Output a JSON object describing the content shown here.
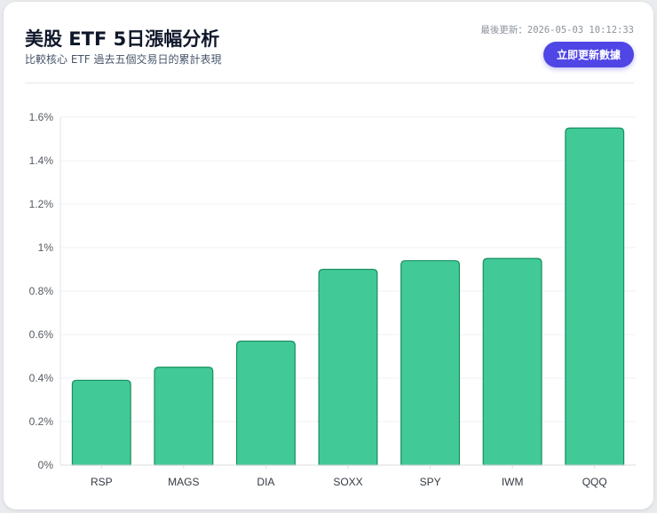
{
  "header": {
    "title": "美股 ETF 5日漲幅分析",
    "subtitle": "比較核心 ETF 過去五個交易日的累計表現",
    "last_updated": "最後更新：2026-05-03 10:12:33",
    "refresh_label": "立即更新數據"
  },
  "colors": {
    "bar_fill": "#41c998",
    "bar_stroke": "#17905f",
    "accent": "#4f46e5"
  },
  "chart_data": {
    "type": "bar",
    "categories": [
      "RSP",
      "MAGS",
      "DIA",
      "SOXX",
      "SPY",
      "IWM",
      "QQQ"
    ],
    "values": [
      0.39,
      0.45,
      0.57,
      0.9,
      0.94,
      0.95,
      1.55
    ],
    "title": "",
    "xlabel": "",
    "ylabel": "",
    "ylim": [
      0,
      1.6
    ],
    "yticks": [
      {
        "value": 0,
        "label": "0%"
      },
      {
        "value": 0.2,
        "label": "0.2%"
      },
      {
        "value": 0.4,
        "label": "0.4%"
      },
      {
        "value": 0.6,
        "label": "0.6%"
      },
      {
        "value": 0.8,
        "label": "0.8%"
      },
      {
        "value": 1.0,
        "label": "1%"
      },
      {
        "value": 1.2,
        "label": "1.2%"
      },
      {
        "value": 1.4,
        "label": "1.4%"
      },
      {
        "value": 1.6,
        "label": "1.6%"
      }
    ],
    "grid": true,
    "legend": "none"
  }
}
